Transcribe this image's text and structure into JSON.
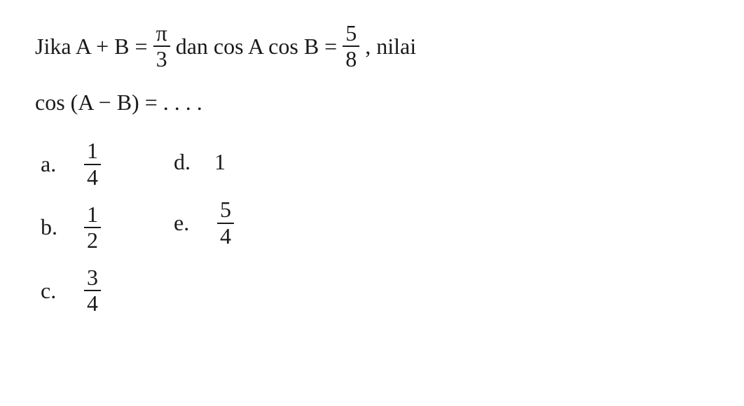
{
  "question": {
    "prefix": "Jika A + B =",
    "frac1_num": "π",
    "frac1_den": "3",
    "mid1": "dan cos A cos B =",
    "frac2_num": "5",
    "frac2_den": "8",
    "suffix": ", nilai",
    "line2": "cos (A − B) = . . . ."
  },
  "options": {
    "a": {
      "label": "a.",
      "num": "1",
      "den": "4",
      "is_frac": true
    },
    "b": {
      "label": "b.",
      "num": "1",
      "den": "2",
      "is_frac": true
    },
    "c": {
      "label": "c.",
      "num": "3",
      "den": "4",
      "is_frac": true
    },
    "d": {
      "label": "d.",
      "value": "1",
      "is_frac": false
    },
    "e": {
      "label": "e.",
      "num": "5",
      "den": "4",
      "is_frac": true
    }
  },
  "style": {
    "font_size": 32,
    "text_color": "#1a1a1a",
    "background_color": "#ffffff",
    "font_family": "Times New Roman"
  }
}
